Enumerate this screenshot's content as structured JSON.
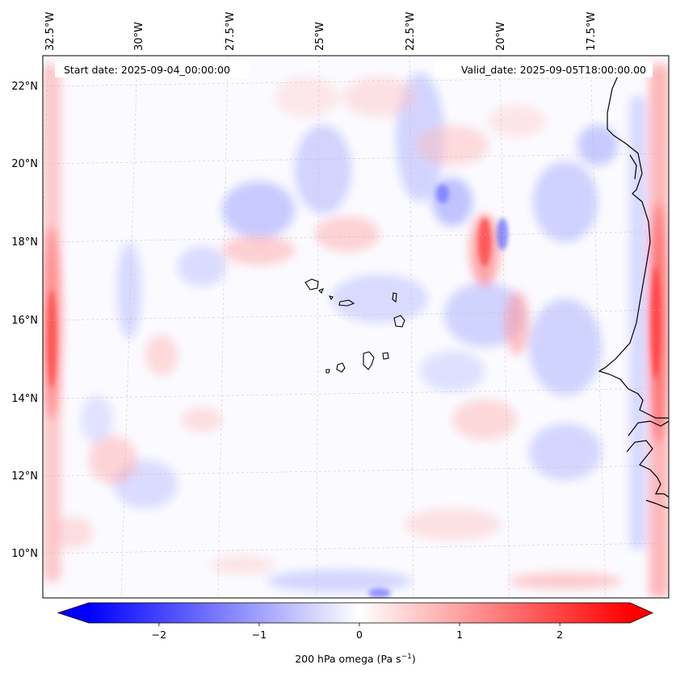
{
  "map": {
    "start_date": "Start date: 2025-09-04_00:00:00",
    "valid_date": "Valid_date: 2025-09-05T18:00:00.00",
    "longitude_labels": [
      "32.5°W",
      "30°W",
      "27.5°W",
      "25°W",
      "22.5°W",
      "20°W",
      "17.5°W"
    ],
    "latitude_labels": [
      "22°N",
      "20°N",
      "18°N",
      "16°N",
      "14°N",
      "12°N",
      "10°N"
    ],
    "variable_label": "200 hPa omega (Pa s",
    "variable_unit_exponent": "−1",
    "variable_label_close": ")"
  },
  "colorbar": {
    "ticks": [
      "−2",
      "−1",
      "0",
      "1",
      "2"
    ],
    "min": -2.7,
    "max": 2.7,
    "extend": "both",
    "colormap": "bwr",
    "colors": {
      "negative": "#0000ff",
      "zero": "#ffffff",
      "positive": "#ff0000"
    }
  },
  "features": {
    "coastline": "West Africa (Senegal / Mauritania / Guinea-Bissau)",
    "islands": "Cape Verde"
  }
}
